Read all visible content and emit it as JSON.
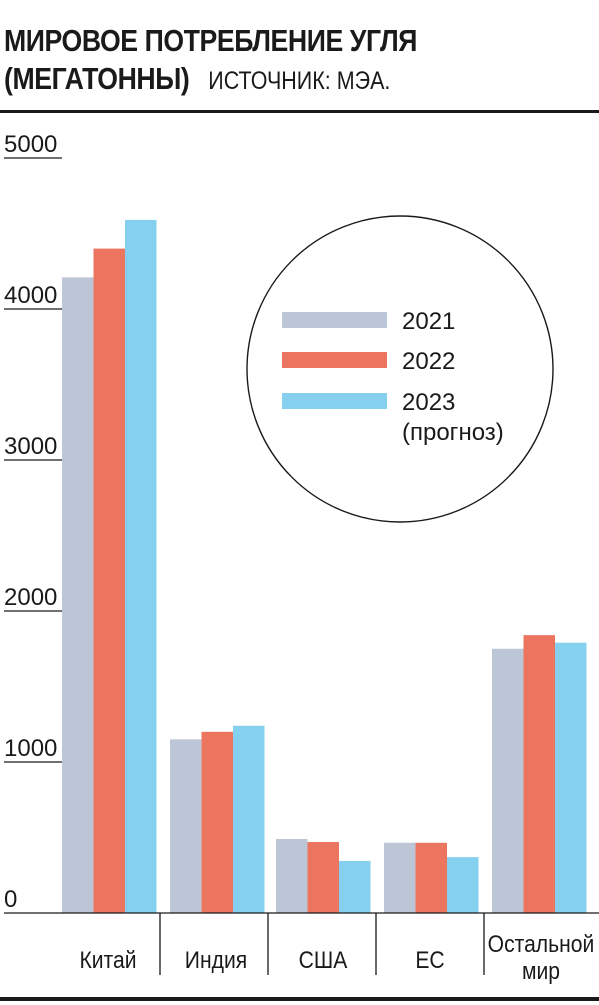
{
  "header": {
    "title_line1": "МИРОВОЕ ПОТРЕБЛЕНИЕ УГЛЯ",
    "title_line2": "(МЕГАТОННЫ)",
    "source": "ИСТОЧНИК: МЭА."
  },
  "colors": {
    "s2021": "#bdc6d6",
    "s2022": "#ec7560",
    "s2023": "#86d0ef",
    "text": "#1a1a1a"
  },
  "chart_data": {
    "type": "bar",
    "title": "МИРОВОЕ ПОТРЕБЛЕНИЕ УГЛЯ (МЕГАТОННЫ)",
    "categories": [
      [
        "Китай"
      ],
      [
        "Индия"
      ],
      [
        "США"
      ],
      [
        "ЕС"
      ],
      [
        "Остальной",
        "мир"
      ]
    ],
    "series": [
      {
        "name": "2021",
        "values": [
          4210,
          1150,
          490,
          465,
          1750
        ]
      },
      {
        "name": "2022",
        "values": [
          4400,
          1200,
          470,
          465,
          1840
        ]
      },
      {
        "name": "2023",
        "values": [
          4590,
          1240,
          345,
          370,
          1790
        ]
      }
    ],
    "legend": [
      "2021",
      "2022",
      [
        "2023",
        "(прогноз)"
      ]
    ],
    "legend_position": "top-right, inside circle",
    "yticks": [
      "0",
      "1000",
      "2000",
      "3000",
      "4000",
      "5000"
    ],
    "ylim": [
      0,
      5000
    ],
    "grid": false
  }
}
